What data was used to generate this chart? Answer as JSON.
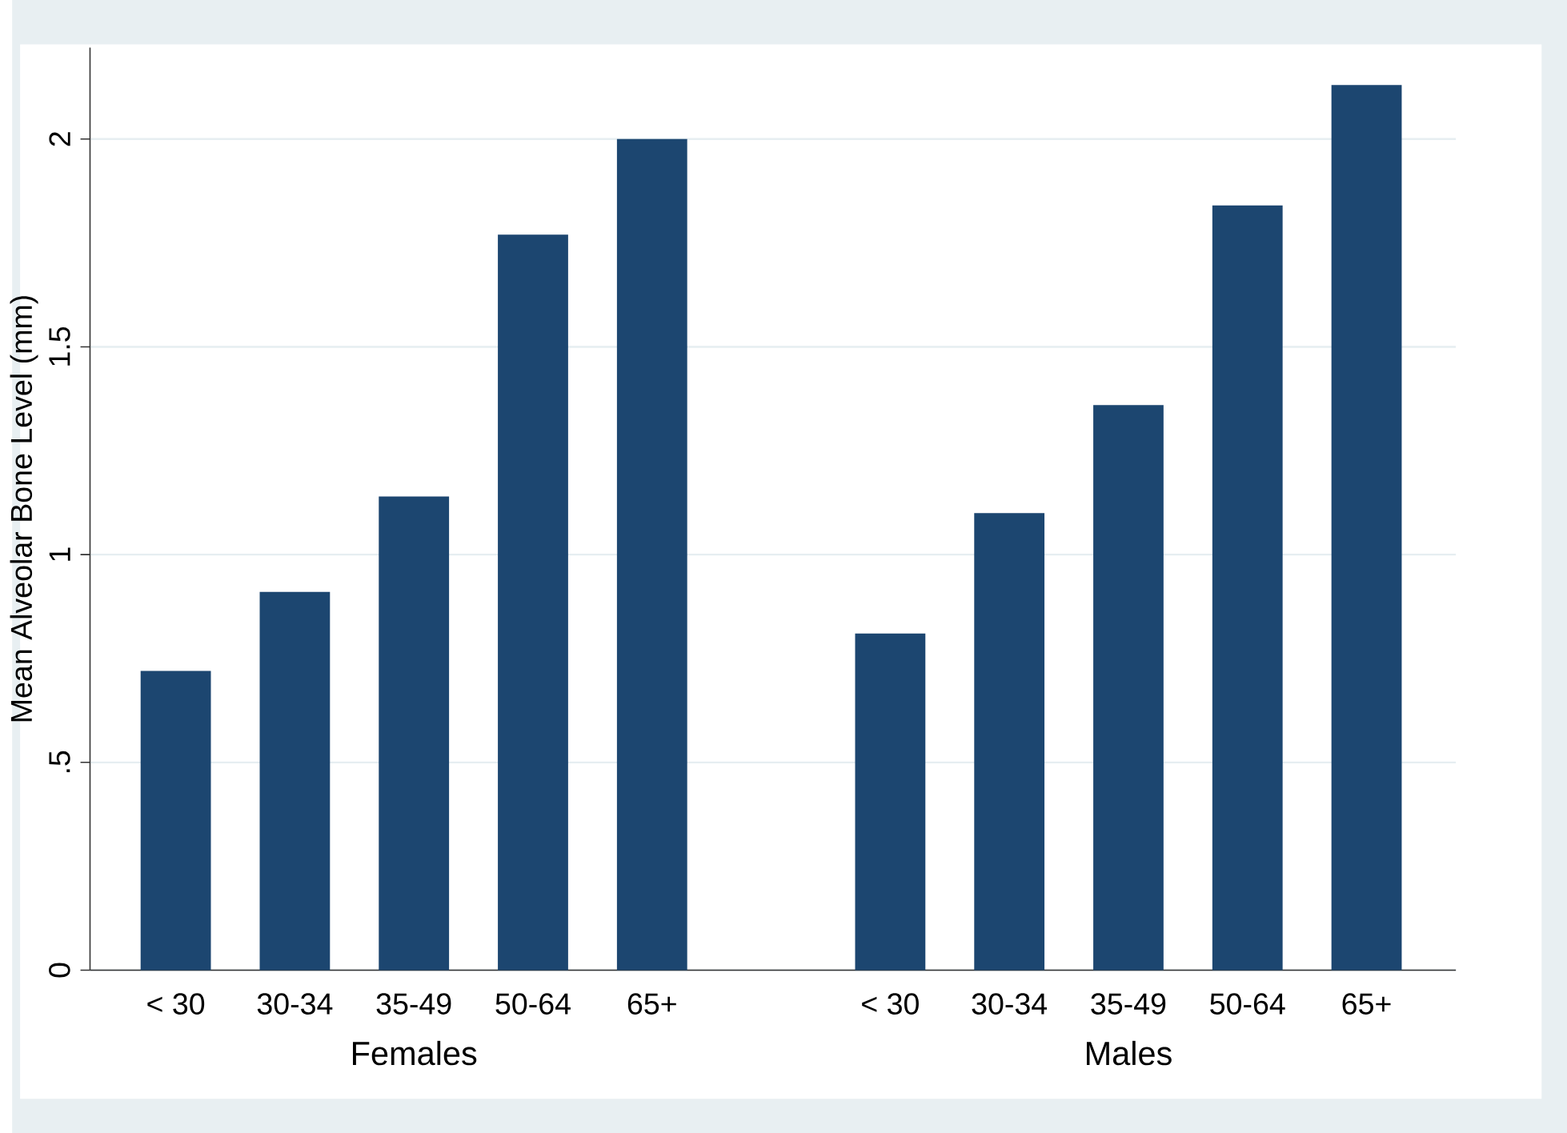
{
  "chart_data": {
    "type": "bar",
    "ylabel": "Mean Alveolar Bone Level (mm)",
    "categories": [
      "< 30",
      "30-34",
      "35-49",
      "50-64",
      "65+",
      null,
      "< 30",
      "30-34",
      "35-49",
      "50-64",
      "65+"
    ],
    "values": [
      0.72,
      0.91,
      1.14,
      1.77,
      2.0,
      null,
      0.81,
      1.1,
      1.36,
      1.84,
      2.13
    ],
    "color": "#1c4670",
    "ylim": [
      0,
      2.22
    ],
    "yticks": [
      0,
      {
        "value": 0.5,
        "label": ".5"
      },
      1,
      1.5,
      2
    ],
    "grid": "y",
    "annotations": [
      "Females",
      "Males"
    ]
  }
}
